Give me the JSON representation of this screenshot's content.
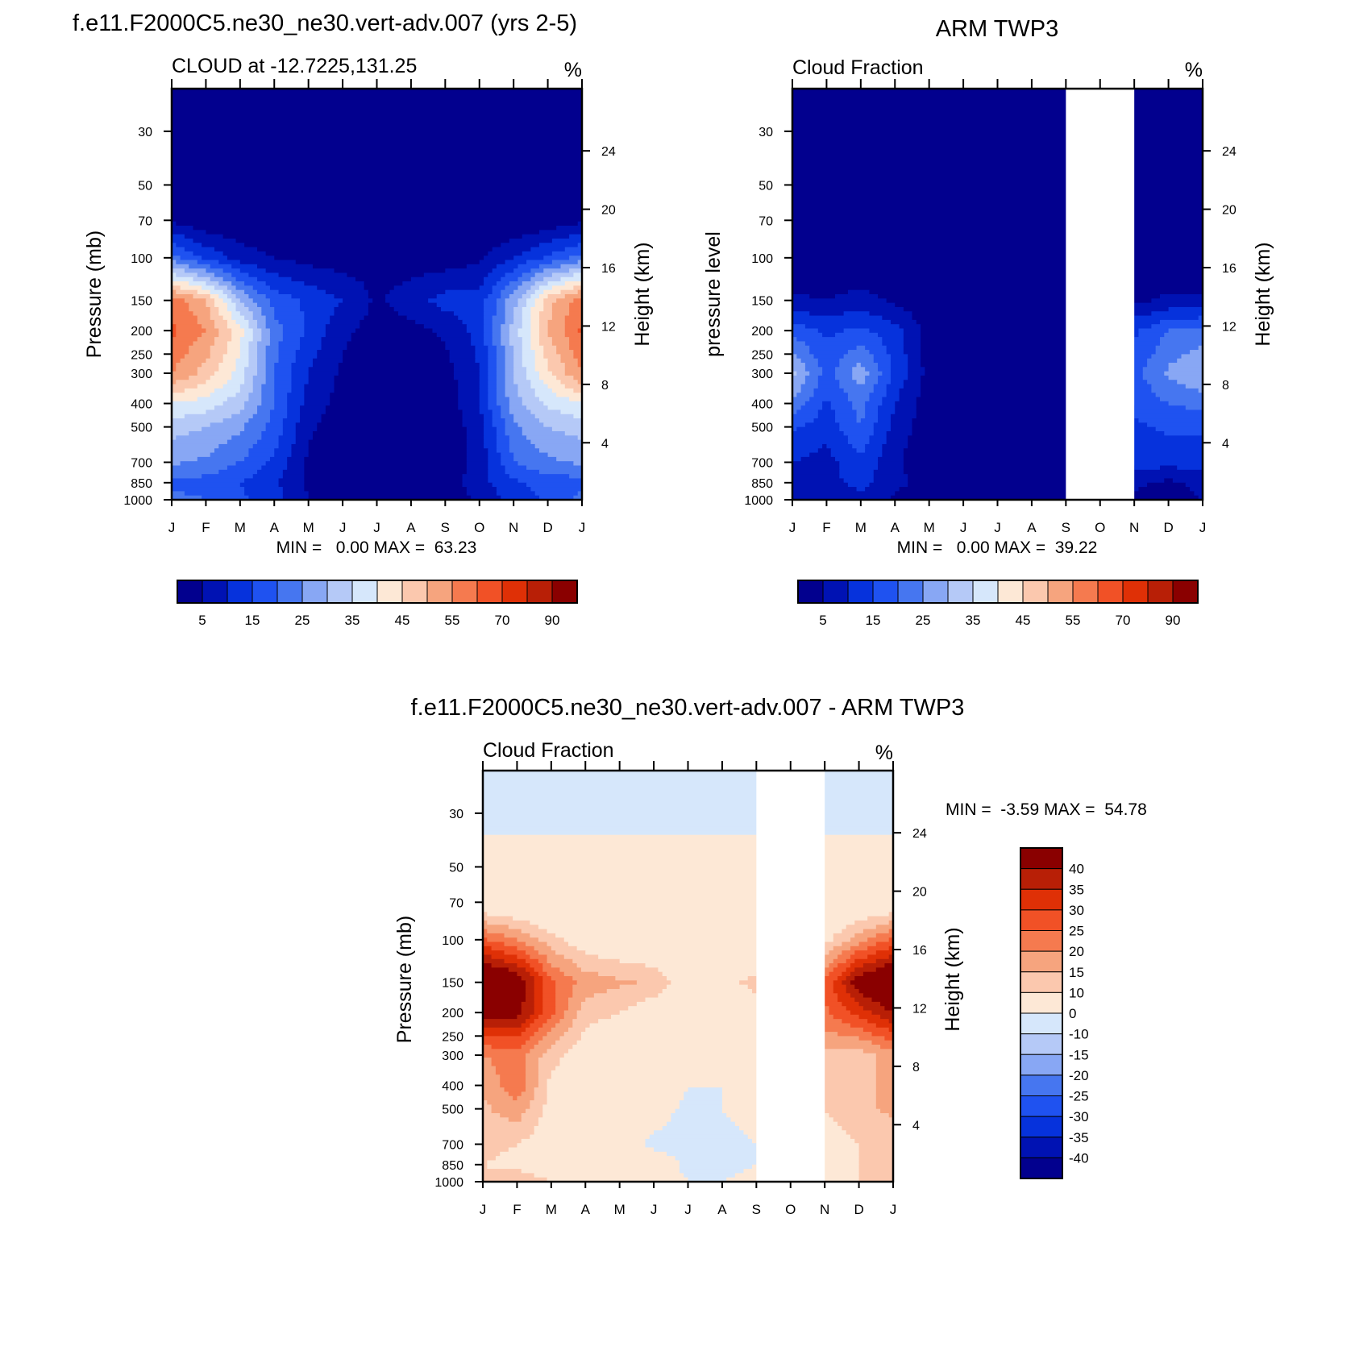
{
  "chart_data": [
    {
      "id": "model",
      "type": "heatmap",
      "title": "f.e11.F2000C5.ne30_ne30.vert-adv.007 (yrs 2-5)",
      "subtitle_left": "CLOUD at -12.7225,131.25",
      "units": "%",
      "ylabel_left": "Pressure (mb)",
      "ylabel_right": "Height (km)",
      "stats": "MIN =   0.00 MAX =  63.23",
      "x_ticks": [
        "J",
        "F",
        "M",
        "A",
        "M",
        "J",
        "J",
        "A",
        "S",
        "O",
        "N",
        "D",
        "J"
      ],
      "pressure_ticks": [
        30,
        50,
        70,
        100,
        150,
        200,
        250,
        300,
        400,
        500,
        700,
        850,
        1000
      ],
      "height_ticks": [
        24,
        20,
        16,
        12,
        8,
        4
      ],
      "ylim": [
        20,
        1000
      ],
      "missing_months": [],
      "levels": [
        5,
        10,
        15,
        20,
        25,
        30,
        35,
        40,
        45,
        50,
        55,
        60,
        70,
        80,
        90
      ],
      "colorbar_labels": [
        "5",
        "15",
        "25",
        "35",
        "45",
        "55",
        "70",
        "90"
      ],
      "grid_pressures": [
        20,
        50,
        70,
        100,
        150,
        200,
        300,
        400,
        500,
        700,
        850,
        1000
      ],
      "grid_values": [
        [
          0,
          0,
          0,
          0,
          0,
          0,
          0,
          0,
          0,
          0,
          0,
          0,
          0
        ],
        [
          0,
          0,
          0,
          0,
          0,
          0,
          0,
          0,
          0,
          0,
          0,
          0,
          0
        ],
        [
          4,
          1,
          0,
          0,
          0,
          0,
          0,
          0,
          0,
          0,
          0,
          1,
          4
        ],
        [
          22,
          14,
          8,
          5,
          3,
          2,
          3,
          2,
          2,
          4,
          10,
          16,
          22
        ],
        [
          58,
          50,
          30,
          18,
          14,
          10,
          4,
          8,
          12,
          12,
          28,
          48,
          58
        ],
        [
          61,
          55,
          42,
          22,
          14,
          6,
          3,
          3,
          6,
          12,
          32,
          50,
          61
        ],
        [
          55,
          48,
          38,
          20,
          10,
          4,
          2,
          2,
          3,
          10,
          30,
          44,
          55
        ],
        [
          40,
          38,
          32,
          20,
          8,
          3,
          1,
          1,
          2,
          10,
          28,
          36,
          40
        ],
        [
          32,
          30,
          26,
          18,
          6,
          2,
          0,
          0,
          1,
          8,
          24,
          30,
          32
        ],
        [
          26,
          24,
          20,
          14,
          4,
          1,
          0,
          0,
          1,
          7,
          20,
          24,
          26
        ],
        [
          18,
          18,
          15,
          11,
          4,
          1,
          0,
          0,
          2,
          8,
          14,
          17,
          18
        ],
        [
          22,
          20,
          16,
          12,
          5,
          2,
          0,
          0,
          1,
          6,
          12,
          16,
          22
        ]
      ]
    },
    {
      "id": "obs",
      "type": "heatmap",
      "title": "ARM TWP3",
      "subtitle_left": "Cloud Fraction",
      "units": "%",
      "ylabel_left": "pressure level",
      "ylabel_right": "Height (km)",
      "stats": "MIN =   0.00 MAX =  39.22",
      "x_ticks": [
        "J",
        "F",
        "M",
        "A",
        "M",
        "J",
        "J",
        "A",
        "S",
        "O",
        "N",
        "D",
        "J"
      ],
      "pressure_ticks": [
        30,
        50,
        70,
        100,
        150,
        200,
        250,
        300,
        400,
        500,
        700,
        850,
        1000
      ],
      "height_ticks": [
        24,
        20,
        16,
        12,
        8,
        4
      ],
      "ylim": [
        20,
        1000
      ],
      "missing_months": [
        8,
        10
      ],
      "levels": [
        5,
        10,
        15,
        20,
        25,
        30,
        35,
        40,
        45,
        50,
        55,
        60,
        70,
        80,
        90
      ],
      "colorbar_labels": [
        "5",
        "15",
        "25",
        "35",
        "45",
        "55",
        "70",
        "90"
      ],
      "grid_pressures": [
        20,
        50,
        70,
        100,
        150,
        200,
        300,
        400,
        500,
        700,
        850,
        1000
      ],
      "grid_values": [
        [
          0,
          0,
          0,
          0,
          0,
          0,
          0,
          0,
          0,
          0,
          0,
          0,
          0
        ],
        [
          0,
          0,
          0,
          0,
          0,
          0,
          0,
          0,
          0,
          0,
          0,
          0,
          0
        ],
        [
          0,
          0,
          0,
          0,
          0,
          0,
          0,
          0,
          0,
          0,
          0,
          0,
          0
        ],
        [
          0,
          0,
          0,
          0,
          0,
          0,
          0,
          0,
          0,
          0,
          0,
          0,
          0
        ],
        [
          6,
          5,
          7,
          4,
          1,
          0,
          0,
          0,
          0,
          0,
          4,
          6,
          6
        ],
        [
          18,
          14,
          16,
          12,
          3,
          0,
          0,
          0,
          0,
          0,
          14,
          20,
          22
        ],
        [
          32,
          18,
          28,
          14,
          3,
          0,
          0,
          0,
          0,
          0,
          18,
          26,
          30
        ],
        [
          24,
          14,
          22,
          10,
          2,
          0,
          0,
          0,
          0,
          0,
          16,
          20,
          22
        ],
        [
          16,
          12,
          20,
          8,
          2,
          0,
          0,
          0,
          0,
          0,
          14,
          16,
          16
        ],
        [
          10,
          8,
          14,
          6,
          1,
          0,
          0,
          0,
          0,
          0,
          12,
          12,
          12
        ],
        [
          6,
          8,
          12,
          6,
          4,
          2,
          0,
          0,
          0,
          0,
          6,
          4,
          6
        ],
        [
          5,
          6,
          8,
          4,
          2,
          0,
          0,
          0,
          0,
          0,
          4,
          3,
          5
        ]
      ]
    },
    {
      "id": "diff",
      "type": "heatmap",
      "title": "f.e11.F2000C5.ne30_ne30.vert-adv.007 - ARM TWP3",
      "subtitle_left": "Cloud Fraction",
      "units": "%",
      "ylabel_left": "Pressure (mb)",
      "ylabel_right": "Height (km)",
      "stats": "MIN =  -3.59 MAX =  54.78",
      "x_ticks": [
        "J",
        "F",
        "M",
        "A",
        "M",
        "J",
        "J",
        "A",
        "S",
        "O",
        "N",
        "D",
        "J"
      ],
      "pressure_ticks": [
        30,
        50,
        70,
        100,
        150,
        200,
        250,
        300,
        400,
        500,
        700,
        850,
        1000
      ],
      "height_ticks": [
        24,
        20,
        16,
        12,
        8,
        4
      ],
      "ylim": [
        20,
        1000
      ],
      "missing_months": [
        8,
        10
      ],
      "levels": [
        -40,
        -35,
        -30,
        -25,
        -20,
        -15,
        -10,
        0,
        10,
        15,
        20,
        25,
        30,
        35,
        40
      ],
      "colorbar_labels": [
        "40",
        "35",
        "30",
        "25",
        "20",
        "15",
        "10",
        "0",
        "-10",
        "-15",
        "-20",
        "-25",
        "-30",
        "-35",
        "-40"
      ],
      "grid_pressures": [
        20,
        50,
        70,
        100,
        150,
        200,
        300,
        400,
        500,
        700,
        850,
        1000
      ],
      "grid_values": [
        [
          -2,
          -2,
          -2,
          -2,
          -2,
          -2,
          -2,
          -2,
          -2,
          -2,
          -2,
          -2,
          -2
        ],
        [
          1,
          1,
          1,
          1,
          1,
          1,
          1,
          1,
          1,
          1,
          1,
          1,
          1
        ],
        [
          3,
          2,
          1,
          1,
          1,
          1,
          1,
          1,
          1,
          1,
          1,
          2,
          3
        ],
        [
          26,
          20,
          12,
          6,
          4,
          3,
          3,
          2,
          2,
          3,
          8,
          18,
          26
        ],
        [
          52,
          46,
          26,
          18,
          16,
          14,
          6,
          8,
          12,
          12,
          26,
          44,
          52
        ],
        [
          44,
          42,
          26,
          12,
          10,
          6,
          3,
          3,
          6,
          12,
          24,
          32,
          40
        ],
        [
          20,
          22,
          12,
          6,
          4,
          3,
          1,
          1,
          2,
          8,
          14,
          12,
          18
        ],
        [
          16,
          24,
          8,
          8,
          4,
          3,
          0,
          0,
          1,
          6,
          12,
          14,
          16
        ],
        [
          14,
          18,
          8,
          6,
          4,
          2,
          -1,
          0,
          1,
          5,
          10,
          14,
          16
        ],
        [
          12,
          10,
          6,
          4,
          3,
          -1,
          -2,
          -1,
          0,
          3,
          6,
          10,
          12
        ],
        [
          10,
          8,
          6,
          8,
          4,
          3,
          -1,
          -1,
          0,
          2,
          6,
          10,
          10
        ],
        [
          12,
          14,
          10,
          8,
          4,
          2,
          0,
          0,
          1,
          3,
          8,
          10,
          12
        ]
      ]
    }
  ],
  "colors": {
    "seq": [
      "#02008e",
      "#0012b3",
      "#0632dc",
      "#1f52f0",
      "#4676f0",
      "#88a7f4",
      "#b5c9f7",
      "#d6e7fb",
      "#fde8d6",
      "#fbc8ae",
      "#f6a47e",
      "#f57a4f",
      "#f15126",
      "#df3006",
      "#b81f06",
      "#8a0000"
    ],
    "div": [
      "#02008e",
      "#0012b3",
      "#0632dc",
      "#1f52f0",
      "#4676f0",
      "#88a7f4",
      "#b5c9f7",
      "#d6e7fb",
      "#fde8d6",
      "#fbc8ae",
      "#f6a47e",
      "#f57a4f",
      "#f15126",
      "#df3006",
      "#b81f06",
      "#8a0000"
    ]
  }
}
